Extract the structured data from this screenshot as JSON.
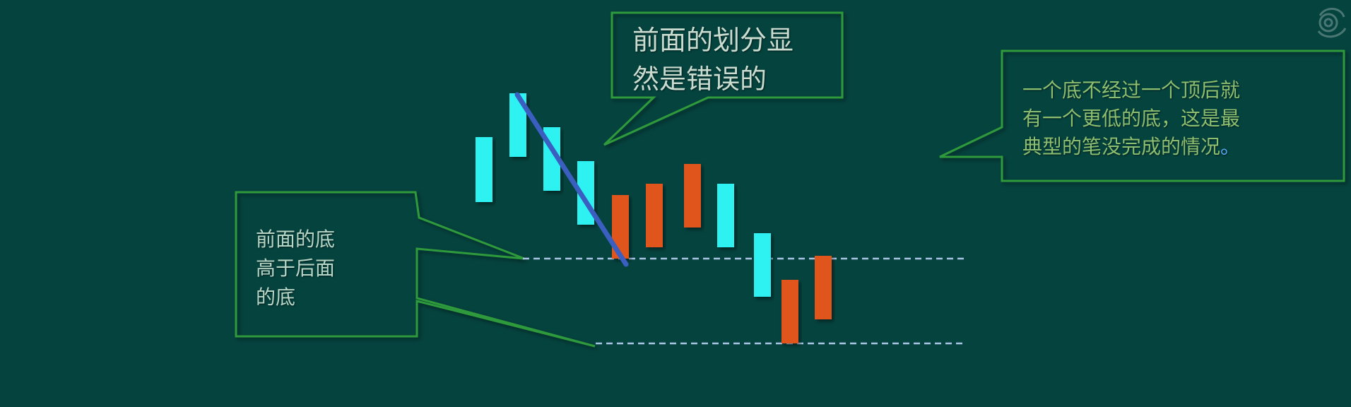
{
  "callouts": {
    "top": "前面的划分显\n然是错误的",
    "left": "前面的底\n高于后面\n的底",
    "right": "一个底不经过一个顶后就\n有一个更低的底，这是最\n典型的笔没完成的情况",
    "right_tail": "。"
  },
  "colors": {
    "background": "#05433f",
    "bullish_candle": "#2ef2f2",
    "bearish_candle": "#e0541c",
    "callout_border": "#2f9a3a",
    "stroke_line": "#3a5fc0",
    "dashed_line": "#a9c4e4"
  },
  "candles": [
    {
      "type": "up"
    },
    {
      "type": "up"
    },
    {
      "type": "up"
    },
    {
      "type": "up"
    },
    {
      "type": "down"
    },
    {
      "type": "down"
    },
    {
      "type": "down"
    },
    {
      "type": "up"
    },
    {
      "type": "up"
    },
    {
      "type": "down"
    },
    {
      "type": "down"
    }
  ]
}
